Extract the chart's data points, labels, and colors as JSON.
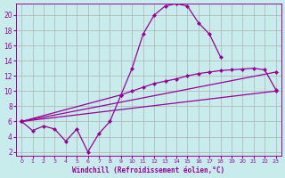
{
  "bg_color": "#c8ecec",
  "grid_color": "#b0b0b0",
  "line_color": "#990099",
  "xlabel": "Windchill (Refroidissement éolien,°C)",
  "xlabel_color": "#990099",
  "tick_color": "#990099",
  "xlim": [
    -0.5,
    23.5
  ],
  "ylim": [
    1.5,
    21.5
  ],
  "yticks": [
    2,
    4,
    6,
    8,
    10,
    12,
    14,
    16,
    18,
    20
  ],
  "xticks": [
    0,
    1,
    2,
    3,
    4,
    5,
    6,
    7,
    8,
    9,
    10,
    11,
    12,
    13,
    14,
    15,
    16,
    17,
    18,
    19,
    20,
    21,
    22,
    23
  ],
  "curve1_x": [
    0,
    1,
    2,
    3,
    4,
    5,
    6,
    7,
    8,
    9,
    10,
    11,
    12,
    13,
    14,
    15,
    16,
    17,
    18
  ],
  "curve1_y": [
    6.0,
    4.8,
    5.4,
    5.0,
    3.4,
    5.0,
    2.0,
    4.4,
    6.0,
    9.5,
    13.0,
    17.5,
    20.0,
    21.2,
    21.5,
    21.2,
    19.0,
    17.5,
    14.5
  ],
  "curve2_x": [
    0,
    9,
    10,
    11,
    12,
    13,
    14,
    15,
    16,
    17,
    18,
    19,
    20,
    21,
    22,
    23
  ],
  "curve2_y": [
    6.0,
    9.5,
    10.0,
    10.5,
    11.0,
    11.3,
    11.6,
    12.0,
    12.3,
    12.5,
    12.7,
    12.8,
    12.9,
    13.0,
    12.8,
    10.2
  ],
  "curve3_x": [
    0,
    23
  ],
  "curve3_y": [
    6.0,
    12.5
  ],
  "curve4_x": [
    0,
    23
  ],
  "curve4_y": [
    6.0,
    10.0
  ]
}
